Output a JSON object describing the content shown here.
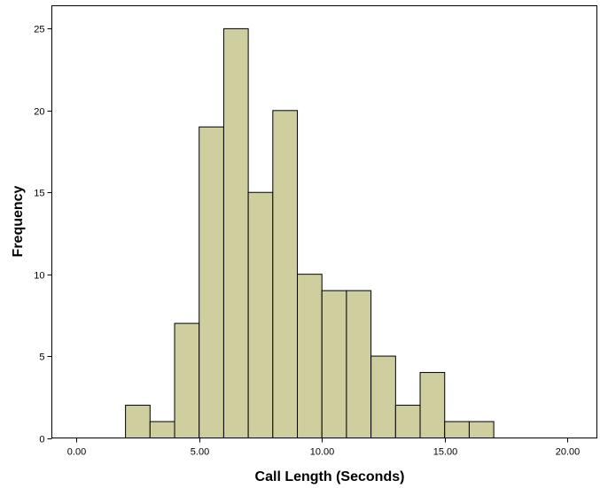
{
  "chart_data": {
    "type": "bar",
    "title": "",
    "xlabel": "Call Length (Seconds)",
    "ylabel": "Frequency",
    "xlim": [
      -1,
      21.2
    ],
    "ylim": [
      0,
      26.4
    ],
    "bin_width": 1.0,
    "bins": [
      {
        "start": 2.0,
        "end": 3.0,
        "count": 2
      },
      {
        "start": 3.0,
        "end": 4.0,
        "count": 1
      },
      {
        "start": 4.0,
        "end": 5.0,
        "count": 7
      },
      {
        "start": 5.0,
        "end": 6.0,
        "count": 19
      },
      {
        "start": 6.0,
        "end": 7.0,
        "count": 25
      },
      {
        "start": 7.0,
        "end": 8.0,
        "count": 15
      },
      {
        "start": 8.0,
        "end": 9.0,
        "count": 20
      },
      {
        "start": 9.0,
        "end": 10.0,
        "count": 10
      },
      {
        "start": 10.0,
        "end": 11.0,
        "count": 9
      },
      {
        "start": 11.0,
        "end": 12.0,
        "count": 9
      },
      {
        "start": 12.0,
        "end": 13.0,
        "count": 5
      },
      {
        "start": 13.0,
        "end": 14.0,
        "count": 2
      },
      {
        "start": 14.0,
        "end": 15.0,
        "count": 4
      },
      {
        "start": 15.0,
        "end": 16.0,
        "count": 1
      },
      {
        "start": 16.0,
        "end": 17.0,
        "count": 1
      }
    ],
    "xticks": [
      {
        "value": 0,
        "label": "0.00"
      },
      {
        "value": 5,
        "label": "5.00"
      },
      {
        "value": 10,
        "label": "10.00"
      },
      {
        "value": 15,
        "label": "15.00"
      },
      {
        "value": 20,
        "label": "20.00"
      }
    ],
    "yticks": [
      {
        "value": 0,
        "label": "0"
      },
      {
        "value": 5,
        "label": "5"
      },
      {
        "value": 10,
        "label": "10"
      },
      {
        "value": 15,
        "label": "15"
      },
      {
        "value": 20,
        "label": "20"
      },
      {
        "value": 25,
        "label": "25"
      }
    ],
    "grid": false,
    "colors": {
      "bar_fill": "#CFCE9E",
      "bar_stroke": "#000000",
      "frame": "#000000",
      "background": "#FFFFFF"
    }
  }
}
